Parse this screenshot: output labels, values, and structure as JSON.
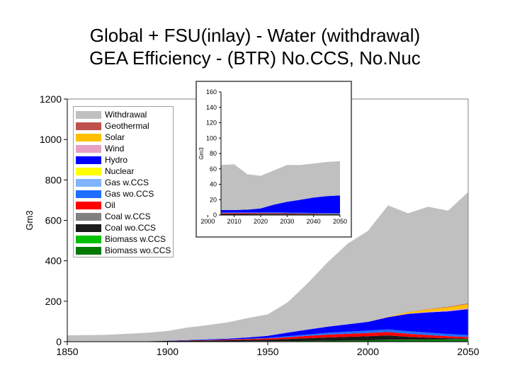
{
  "title": {
    "line1": "Global + FSU(inlay) - Water (withdrawal)",
    "line2": "GEA Efficiency - (BTR) No.CCS, No.Nuc"
  },
  "chart_data": [
    {
      "type": "area",
      "name": "Global",
      "stacked": true,
      "xlabel": "",
      "ylabel": "Gm3",
      "xlim": [
        1850,
        2050
      ],
      "ylim": [
        0,
        1200
      ],
      "x_ticks": [
        "1850",
        "1900",
        "1950",
        "2000",
        "2050"
      ],
      "y_ticks": [
        "0",
        "200",
        "400",
        "600",
        "800",
        "1000",
        "1200"
      ],
      "x": [
        1850,
        1870,
        1890,
        1900,
        1910,
        1920,
        1930,
        1940,
        1950,
        1960,
        1970,
        1980,
        1990,
        2000,
        2010,
        2020,
        2030,
        2040,
        2050
      ],
      "series": [
        {
          "name": "Biomass wo.CCS",
          "color": "#007a00",
          "values": [
            0,
            0,
            0,
            1,
            1,
            1,
            1,
            2,
            2,
            3,
            4,
            5,
            6,
            7,
            8,
            8,
            9,
            9,
            10
          ]
        },
        {
          "name": "Biomass w.CCS",
          "color": "#00c000",
          "values": [
            0,
            0,
            0,
            0,
            0,
            0,
            0,
            0,
            0,
            0,
            0,
            0,
            0,
            0,
            1,
            1,
            1,
            2,
            2
          ]
        },
        {
          "name": "Coal wo.CCS",
          "color": "#1a1a1a",
          "values": [
            1,
            1,
            2,
            3,
            4,
            5,
            6,
            7,
            8,
            10,
            13,
            16,
            18,
            20,
            22,
            15,
            10,
            6,
            3
          ]
        },
        {
          "name": "Coal w.CCS",
          "color": "#808080",
          "values": [
            0,
            0,
            0,
            0,
            0,
            0,
            0,
            0,
            0,
            0,
            0,
            0,
            0,
            0,
            0,
            0,
            0,
            0,
            0
          ]
        },
        {
          "name": "Oil",
          "color": "#ff0000",
          "values": [
            0,
            0,
            0,
            0,
            1,
            2,
            3,
            4,
            6,
            9,
            12,
            14,
            15,
            16,
            17,
            15,
            13,
            10,
            8
          ]
        },
        {
          "name": "Gas wo.CCS",
          "color": "#1e6eff",
          "values": [
            0,
            0,
            0,
            0,
            0,
            1,
            1,
            2,
            3,
            5,
            7,
            9,
            11,
            12,
            13,
            13,
            12,
            11,
            10
          ]
        },
        {
          "name": "Gas w.CCS",
          "color": "#80b4ff",
          "values": [
            0,
            0,
            0,
            0,
            0,
            0,
            0,
            0,
            0,
            0,
            0,
            0,
            0,
            0,
            0,
            0,
            0,
            0,
            0
          ]
        },
        {
          "name": "Nuclear",
          "color": "#ffff00",
          "values": [
            0,
            0,
            0,
            0,
            0,
            0,
            0,
            0,
            0,
            0,
            0,
            0,
            0,
            0,
            0,
            0,
            0,
            0,
            0
          ]
        },
        {
          "name": "Hydro",
          "color": "#0000ff",
          "values": [
            0,
            0,
            0,
            1,
            2,
            3,
            4,
            6,
            10,
            18,
            24,
            30,
            36,
            43,
            60,
            85,
            100,
            112,
            128
          ]
        },
        {
          "name": "Wind",
          "color": "#e6a0c4",
          "values": [
            0,
            0,
            0,
            0,
            0,
            0,
            0,
            0,
            0,
            0,
            0,
            0,
            0,
            0,
            1,
            2,
            3,
            4,
            5
          ]
        },
        {
          "name": "Solar",
          "color": "#ffc000",
          "values": [
            0,
            0,
            0,
            0,
            0,
            0,
            0,
            0,
            0,
            0,
            0,
            0,
            0,
            0,
            2,
            7,
            12,
            16,
            20
          ]
        },
        {
          "name": "Geothermal",
          "color": "#c0504d",
          "values": [
            0,
            0,
            0,
            0,
            0,
            0,
            0,
            0,
            0,
            0,
            0,
            0,
            0,
            0,
            0,
            1,
            2,
            3,
            4
          ]
        },
        {
          "name": "Withdrawal",
          "color": "#c0c0c0",
          "values": [
            30,
            33,
            42,
            48,
            62,
            70,
            80,
            96,
            106,
            150,
            230,
            320,
            400,
            450,
            550,
            488,
            505,
            475,
            550
          ]
        }
      ]
    },
    {
      "type": "area",
      "name": "FSU (inlay)",
      "stacked": true,
      "xlabel": "",
      "ylabel": "Gm3",
      "xlim": [
        2005,
        2050
      ],
      "ylim": [
        0,
        160
      ],
      "x_ticks": [
        "2000",
        "2010",
        "2020",
        "2030",
        "2040",
        "2050"
      ],
      "y_ticks": [
        "0",
        "20",
        "40",
        "60",
        "80",
        "100",
        "120",
        "140",
        "160"
      ],
      "x": [
        2005,
        2010,
        2015,
        2020,
        2025,
        2030,
        2035,
        2040,
        2045,
        2050
      ],
      "series": [
        {
          "name": "Biomass wo.CCS",
          "color": "#007a00",
          "values": [
            0.5,
            0.5,
            0.5,
            0.6,
            0.6,
            0.7,
            0.7,
            0.8,
            0.8,
            0.9
          ]
        },
        {
          "name": "Coal wo.CCS",
          "color": "#1a1a1a",
          "values": [
            1,
            1,
            1,
            1,
            1,
            0.8,
            0.6,
            0.5,
            0.4,
            0.3
          ]
        },
        {
          "name": "Oil",
          "color": "#ff0000",
          "values": [
            1,
            1,
            1,
            1,
            1,
            0.8,
            0.6,
            0.5,
            0.4,
            0.3
          ]
        },
        {
          "name": "Gas wo.CCS",
          "color": "#1e6eff",
          "values": [
            1,
            1,
            1,
            1,
            1,
            1,
            1,
            1,
            1,
            1
          ]
        },
        {
          "name": "Hydro",
          "color": "#0000ff",
          "values": [
            3,
            3,
            3.5,
            5,
            10,
            14,
            17,
            20,
            22,
            23
          ]
        },
        {
          "name": "Withdrawal",
          "color": "#c0c0c0",
          "values": [
            58.5,
            59.5,
            46,
            42.4,
            44.4,
            47.7,
            45.1,
            44.2,
            44.4,
            44.5
          ]
        }
      ]
    }
  ]
}
